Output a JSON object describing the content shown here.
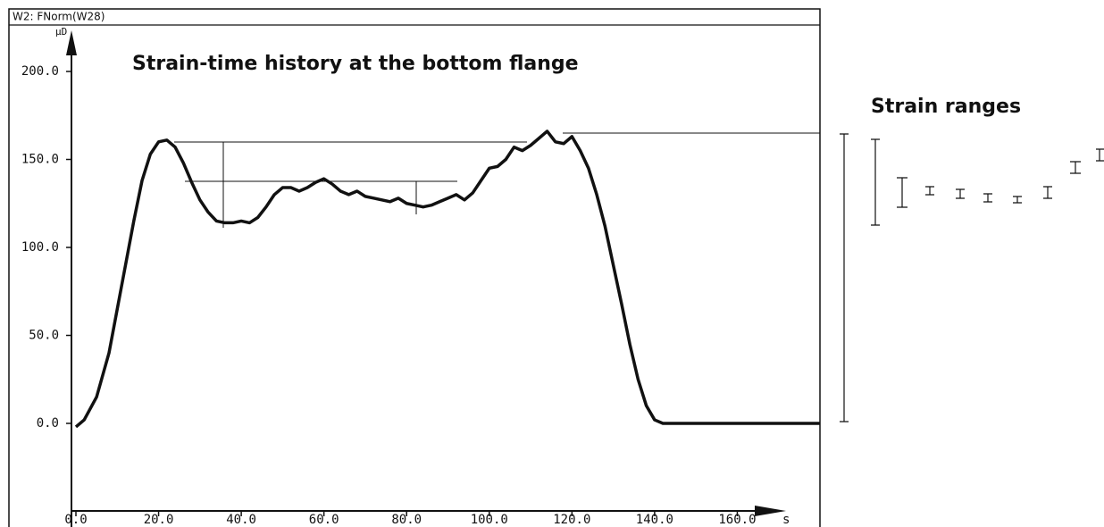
{
  "chart_data": {
    "type": "line",
    "header": "W2: FNorm(W28)",
    "title": "Strain-time history at the bottom flange",
    "y_label": "μD",
    "x_label": "s",
    "side_title": "Strain ranges",
    "xlim": [
      0,
      180
    ],
    "ylim": [
      -50,
      220
    ],
    "xticks": [
      {
        "value": 0,
        "label": "0.0"
      },
      {
        "value": 20,
        "label": "20.0"
      },
      {
        "value": 40,
        "label": "40.0"
      },
      {
        "value": 60,
        "label": "60.0"
      },
      {
        "value": 80,
        "label": "80.0"
      },
      {
        "value": 100,
        "label": "100.0"
      },
      {
        "value": 120,
        "label": "120.0"
      },
      {
        "value": 140,
        "label": "140.0"
      },
      {
        "value": 160,
        "label": "160.0"
      }
    ],
    "yticks": [
      {
        "value": 0,
        "label": "0.0"
      },
      {
        "value": 50,
        "label": "50.0"
      },
      {
        "value": 100,
        "label": "100.0"
      },
      {
        "value": 150,
        "label": "150.0"
      },
      {
        "value": 200,
        "label": "200.0"
      }
    ],
    "x": [
      0,
      2,
      5,
      8,
      10,
      12,
      14,
      16,
      18,
      20,
      22,
      24,
      26,
      28,
      30,
      32,
      34,
      36,
      38,
      40,
      42,
      44,
      46,
      48,
      50,
      52,
      54,
      56,
      58,
      60,
      62,
      64,
      66,
      68,
      70,
      72,
      74,
      76,
      78,
      80,
      82,
      84,
      86,
      88,
      90,
      92,
      94,
      96,
      98,
      100,
      102,
      104,
      106,
      108,
      110,
      112,
      114,
      116,
      118,
      120,
      122,
      124,
      126,
      128,
      130,
      132,
      134,
      136,
      138,
      140,
      142,
      150,
      160,
      170,
      180
    ],
    "series": [
      {
        "color": "#111111",
        "values": [
          -2,
          2,
          15,
          40,
          65,
          90,
          115,
          138,
          153,
          160,
          161,
          157,
          148,
          137,
          127,
          120,
          115,
          114,
          114,
          115,
          114,
          117,
          123,
          130,
          134,
          134,
          132,
          134,
          137,
          139,
          136,
          132,
          130,
          132,
          129,
          128,
          127,
          126,
          128,
          125,
          124,
          123,
          124,
          126,
          128,
          130,
          127,
          131,
          138,
          145,
          146,
          150,
          157,
          155,
          158,
          162,
          166,
          160,
          159,
          163,
          155,
          145,
          130,
          112,
          90,
          68,
          45,
          25,
          10,
          2,
          0,
          0,
          0,
          0,
          0
        ]
      }
    ]
  }
}
